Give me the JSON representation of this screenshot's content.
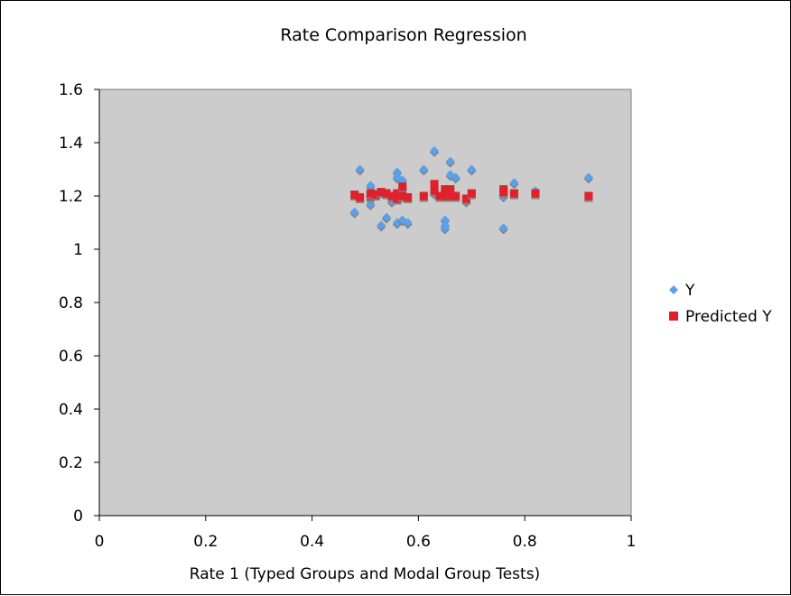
{
  "chart_data": {
    "type": "scatter",
    "title": "Rate Comparison Regression",
    "xlabel": "Rate 1 (Typed Groups and Modal Group Tests)",
    "ylabel": "",
    "xlim": [
      0,
      1
    ],
    "ylim": [
      0,
      1.6
    ],
    "x_ticks": [
      "0",
      "0.2",
      "0.4",
      "0.6",
      "0.8",
      "1"
    ],
    "y_ticks": [
      "0",
      "0.2",
      "0.4",
      "0.6",
      "0.8",
      "1",
      "1.2",
      "1.4",
      "1.6"
    ],
    "grid": false,
    "plot_background": "#cccccc",
    "legend_position": "right",
    "series": [
      {
        "name": "Y",
        "marker": "diamond",
        "color": "#5aa0ea",
        "points": [
          [
            0.48,
            1.14
          ],
          [
            0.49,
            1.3
          ],
          [
            0.51,
            1.17
          ],
          [
            0.51,
            1.24
          ],
          [
            0.52,
            1.21
          ],
          [
            0.53,
            1.09
          ],
          [
            0.54,
            1.12
          ],
          [
            0.55,
            1.18
          ],
          [
            0.56,
            1.29
          ],
          [
            0.56,
            1.27
          ],
          [
            0.56,
            1.1
          ],
          [
            0.57,
            1.26
          ],
          [
            0.57,
            1.21
          ],
          [
            0.57,
            1.11
          ],
          [
            0.58,
            1.1
          ],
          [
            0.61,
            1.3
          ],
          [
            0.63,
            1.37
          ],
          [
            0.63,
            1.21
          ],
          [
            0.65,
            1.11
          ],
          [
            0.65,
            1.09
          ],
          [
            0.65,
            1.08
          ],
          [
            0.66,
            1.33
          ],
          [
            0.66,
            1.28
          ],
          [
            0.67,
            1.27
          ],
          [
            0.69,
            1.18
          ],
          [
            0.7,
            1.3
          ],
          [
            0.76,
            1.08
          ],
          [
            0.76,
            1.2
          ],
          [
            0.78,
            1.25
          ],
          [
            0.82,
            1.22
          ],
          [
            0.92,
            1.27
          ]
        ]
      },
      {
        "name": "Predicted Y",
        "marker": "square",
        "color": "#e0202a",
        "points": [
          [
            0.48,
            1.205
          ],
          [
            0.49,
            1.195
          ],
          [
            0.51,
            1.2
          ],
          [
            0.51,
            1.21
          ],
          [
            0.52,
            1.205
          ],
          [
            0.53,
            1.215
          ],
          [
            0.54,
            1.21
          ],
          [
            0.55,
            1.2
          ],
          [
            0.56,
            1.21
          ],
          [
            0.56,
            1.19
          ],
          [
            0.57,
            1.235
          ],
          [
            0.57,
            1.2
          ],
          [
            0.58,
            1.195
          ],
          [
            0.61,
            1.2
          ],
          [
            0.63,
            1.245
          ],
          [
            0.63,
            1.22
          ],
          [
            0.64,
            1.2
          ],
          [
            0.65,
            1.225
          ],
          [
            0.65,
            1.2
          ],
          [
            0.66,
            1.225
          ],
          [
            0.66,
            1.2
          ],
          [
            0.67,
            1.2
          ],
          [
            0.69,
            1.19
          ],
          [
            0.7,
            1.21
          ],
          [
            0.76,
            1.225
          ],
          [
            0.76,
            1.215
          ],
          [
            0.78,
            1.21
          ],
          [
            0.82,
            1.21
          ],
          [
            0.92,
            1.2
          ]
        ]
      }
    ]
  }
}
